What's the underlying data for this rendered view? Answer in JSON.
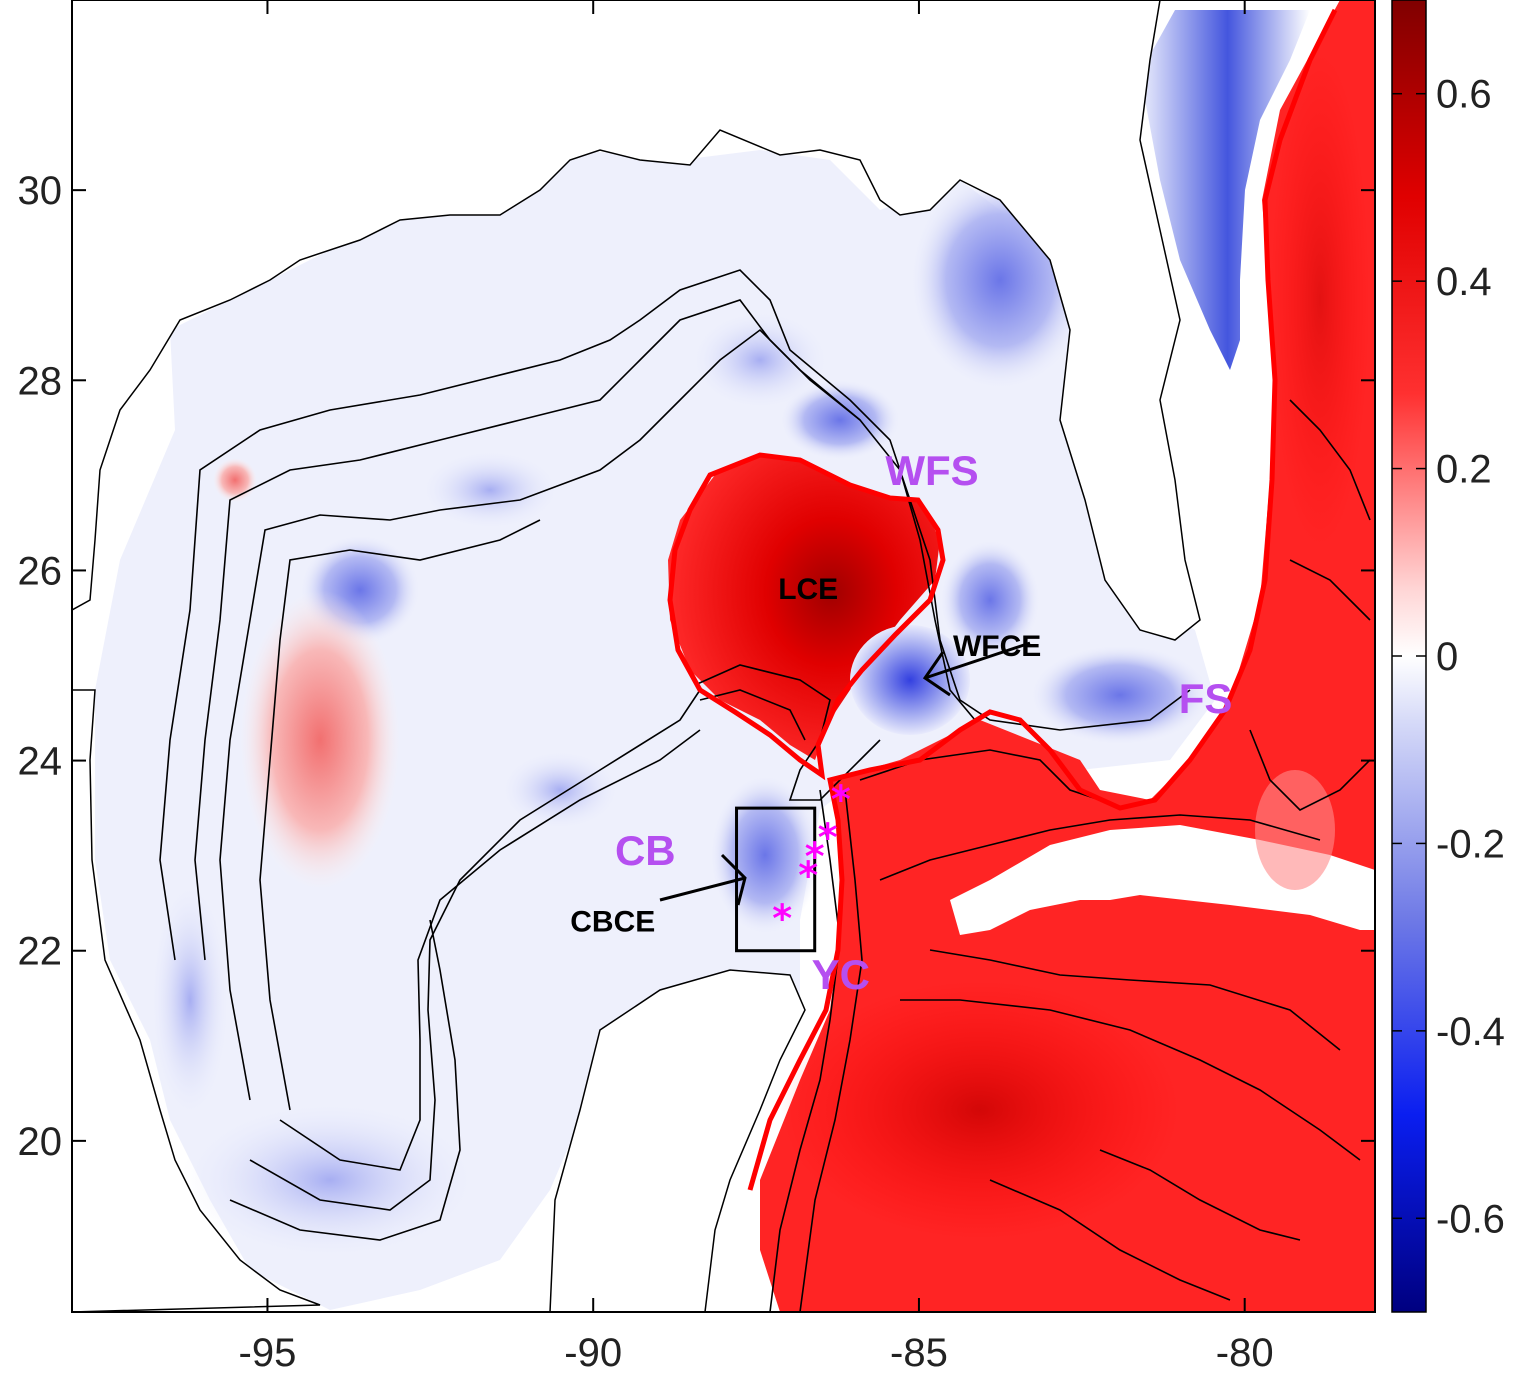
{
  "map": {
    "x_ticks": [
      {
        "value": -95,
        "label": "-95"
      },
      {
        "value": -90,
        "label": "-90"
      },
      {
        "value": -85,
        "label": "-85"
      },
      {
        "value": -80,
        "label": "-80"
      }
    ],
    "y_ticks": [
      {
        "value": 20,
        "label": "20"
      },
      {
        "value": 22,
        "label": "22"
      },
      {
        "value": 24,
        "label": "24"
      },
      {
        "value": 26,
        "label": "26"
      },
      {
        "value": 28,
        "label": "28"
      },
      {
        "value": 30,
        "label": "30"
      }
    ],
    "lon_range": [
      -98.0,
      -78.0
    ],
    "lat_range": [
      18.2,
      32.0
    ]
  },
  "colorbar": {
    "range": [
      -0.7,
      0.7
    ],
    "ticks": [
      {
        "value": 0.6,
        "label": "0.6"
      },
      {
        "value": 0.4,
        "label": "0.4"
      },
      {
        "value": 0.2,
        "label": "0.2"
      },
      {
        "value": 0,
        "label": "0"
      },
      {
        "value": -0.2,
        "label": "-0.2"
      },
      {
        "value": -0.4,
        "label": "-0.4"
      },
      {
        "value": -0.6,
        "label": "-0.6"
      }
    ],
    "colors": {
      "high": "#800000",
      "mid_high": "#ff0000",
      "zero": "#ffffff",
      "mid_low": "#0000ff",
      "low": "#000080"
    }
  },
  "labels": {
    "regions": [
      {
        "text": "WFS",
        "lon": -84.8,
        "lat": 26.9
      },
      {
        "text": "FS",
        "lon": -80.6,
        "lat": 24.5
      },
      {
        "text": "CB",
        "lon": -89.2,
        "lat": 22.9
      },
      {
        "text": "YC",
        "lon": -86.2,
        "lat": 21.6
      }
    ],
    "features": [
      {
        "text": "LCE",
        "lon": -86.7,
        "lat": 25.7
      },
      {
        "text": "WFCE",
        "lon": -83.8,
        "lat": 25.1
      },
      {
        "text": "CBCE",
        "lon": -89.7,
        "lat": 22.2
      }
    ]
  },
  "markers": [
    {
      "lon": -86.2,
      "lat": 23.6
    },
    {
      "lon": -86.4,
      "lat": 23.2
    },
    {
      "lon": -86.6,
      "lat": 23.0
    },
    {
      "lon": -86.7,
      "lat": 22.8
    },
    {
      "lon": -87.1,
      "lat": 22.35
    }
  ],
  "box": {
    "lon_min": -87.8,
    "lon_max": -86.6,
    "lat_min": 22.0,
    "lat_max": 23.5
  },
  "colors": {
    "positive": "#ff0000",
    "negative": "#3b4dd8",
    "contour": "#000000",
    "region": "#b54ff0",
    "marker": "#ff00ff"
  }
}
